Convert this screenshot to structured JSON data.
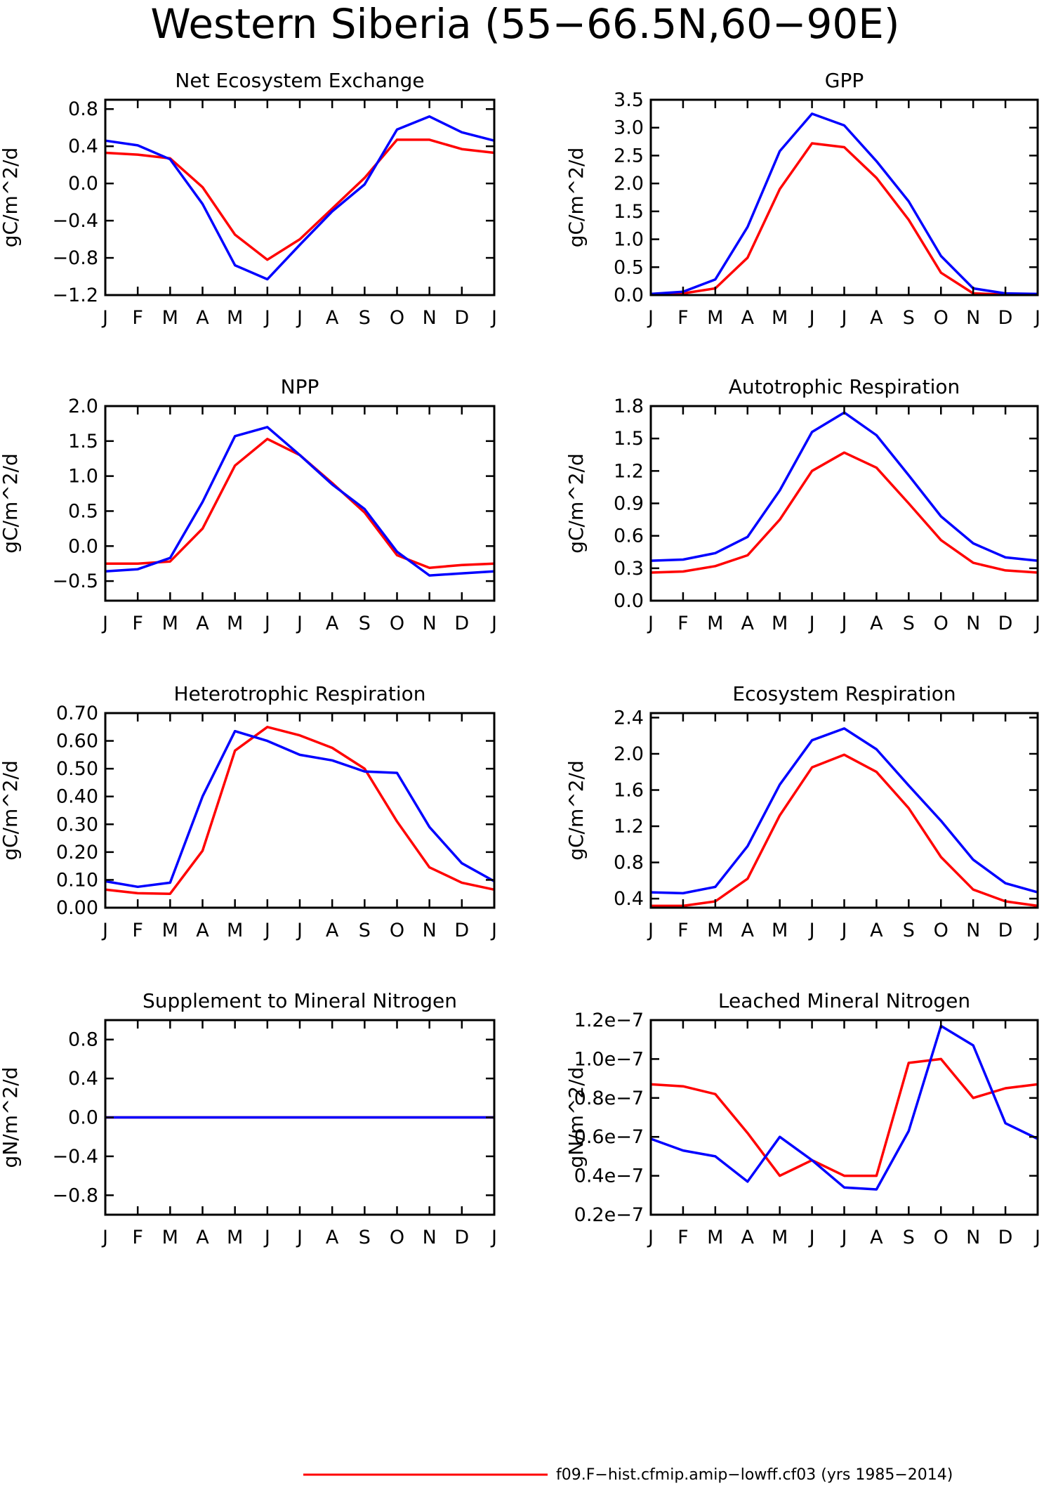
{
  "title": "Western Siberia (55−66.5N,60−90E)",
  "colors": {
    "run1": "#ff0000",
    "run2": "#0000ff"
  },
  "legend": {
    "entries": [
      {
        "label": "f09.F−hist.cfmip.amip−lowff.cf03 (yrs 1985−2014)",
        "color": "#ff0000"
      }
    ]
  },
  "chart_data": [
    {
      "type": "line",
      "title": "Net Ecosystem Exchange",
      "ylabel": "gC/m^2/d",
      "categories": [
        "J",
        "F",
        "M",
        "A",
        "M",
        "J",
        "J",
        "A",
        "S",
        "O",
        "N",
        "D",
        "J"
      ],
      "ylim": [
        -1.2,
        0.9
      ],
      "yticks": [
        -1.2,
        -0.8,
        -0.4,
        0.0,
        0.4,
        0.8
      ],
      "ytick_labels": [
        "−1.2",
        "−0.8",
        "−0.4",
        "0.0",
        "0.4",
        "0.8"
      ],
      "series": [
        {
          "color": "#ff0000",
          "values": [
            0.33,
            0.31,
            0.27,
            -0.04,
            -0.55,
            -0.82,
            -0.6,
            -0.27,
            0.06,
            0.47,
            0.47,
            0.37,
            0.33
          ]
        },
        {
          "color": "#0000ff",
          "values": [
            0.46,
            0.41,
            0.26,
            -0.22,
            -0.88,
            -1.03,
            -0.66,
            -0.3,
            -0.01,
            0.58,
            0.72,
            0.55,
            0.46
          ]
        }
      ]
    },
    {
      "type": "line",
      "title": "GPP",
      "ylabel": "gC/m^2/d",
      "categories": [
        "J",
        "F",
        "M",
        "A",
        "M",
        "J",
        "J",
        "A",
        "S",
        "O",
        "N",
        "D",
        "J"
      ],
      "ylim": [
        0.0,
        3.5
      ],
      "yticks": [
        0.0,
        0.5,
        1.0,
        1.5,
        2.0,
        2.5,
        3.0,
        3.5
      ],
      "ytick_labels": [
        "0.0",
        "0.5",
        "1.0",
        "1.5",
        "2.0",
        "2.5",
        "3.0",
        "3.5"
      ],
      "series": [
        {
          "color": "#ff0000",
          "values": [
            0.02,
            0.03,
            0.12,
            0.67,
            1.9,
            2.72,
            2.65,
            2.1,
            1.35,
            0.4,
            0.03,
            0.01,
            0.02
          ]
        },
        {
          "color": "#0000ff",
          "values": [
            0.02,
            0.06,
            0.28,
            1.22,
            2.58,
            3.25,
            3.04,
            2.4,
            1.68,
            0.7,
            0.12,
            0.03,
            0.02
          ]
        }
      ]
    },
    {
      "type": "line",
      "title": "NPP",
      "ylabel": "gC/m^2/d",
      "categories": [
        "J",
        "F",
        "M",
        "A",
        "M",
        "J",
        "J",
        "A",
        "S",
        "O",
        "N",
        "D",
        "J"
      ],
      "ylim": [
        -0.78,
        2.0
      ],
      "yticks": [
        -0.5,
        0.0,
        0.5,
        1.0,
        1.5,
        2.0
      ],
      "ytick_labels": [
        "−0.5",
        "0.0",
        "0.5",
        "1.0",
        "1.5",
        "2.0"
      ],
      "series": [
        {
          "color": "#ff0000",
          "values": [
            -0.25,
            -0.25,
            -0.22,
            0.25,
            1.15,
            1.53,
            1.3,
            0.9,
            0.48,
            -0.13,
            -0.31,
            -0.27,
            -0.25
          ]
        },
        {
          "color": "#0000ff",
          "values": [
            -0.36,
            -0.33,
            -0.17,
            0.63,
            1.57,
            1.7,
            1.3,
            0.88,
            0.53,
            -0.08,
            -0.42,
            -0.39,
            -0.36
          ]
        }
      ]
    },
    {
      "type": "line",
      "title": "Autotrophic Respiration",
      "ylabel": "gC/m^2/d",
      "categories": [
        "J",
        "F",
        "M",
        "A",
        "M",
        "J",
        "J",
        "A",
        "S",
        "O",
        "N",
        "D",
        "J"
      ],
      "ylim": [
        0.0,
        1.8
      ],
      "yticks": [
        0.0,
        0.3,
        0.6,
        0.9,
        1.2,
        1.5,
        1.8
      ],
      "ytick_labels": [
        "0.0",
        "0.3",
        "0.6",
        "0.9",
        "1.2",
        "1.5",
        "1.8"
      ],
      "series": [
        {
          "color": "#ff0000",
          "values": [
            0.26,
            0.27,
            0.32,
            0.42,
            0.75,
            1.2,
            1.37,
            1.23,
            0.9,
            0.56,
            0.35,
            0.28,
            0.26
          ]
        },
        {
          "color": "#0000ff",
          "values": [
            0.37,
            0.38,
            0.44,
            0.59,
            1.02,
            1.56,
            1.74,
            1.53,
            1.16,
            0.78,
            0.53,
            0.4,
            0.37
          ]
        }
      ]
    },
    {
      "type": "line",
      "title": "Heterotrophic Respiration",
      "ylabel": "gC/m^2/d",
      "categories": [
        "J",
        "F",
        "M",
        "A",
        "M",
        "J",
        "J",
        "A",
        "S",
        "O",
        "N",
        "D",
        "J"
      ],
      "ylim": [
        0.0,
        0.7
      ],
      "yticks": [
        0.0,
        0.1,
        0.2,
        0.3,
        0.4,
        0.5,
        0.6,
        0.7
      ],
      "ytick_labels": [
        "0.00",
        "0.10",
        "0.20",
        "0.30",
        "0.40",
        "0.50",
        "0.60",
        "0.70"
      ],
      "series": [
        {
          "color": "#ff0000",
          "values": [
            0.065,
            0.052,
            0.05,
            0.205,
            0.565,
            0.65,
            0.62,
            0.575,
            0.5,
            0.31,
            0.145,
            0.09,
            0.065
          ]
        },
        {
          "color": "#0000ff",
          "values": [
            0.095,
            0.075,
            0.09,
            0.4,
            0.635,
            0.6,
            0.55,
            0.53,
            0.49,
            0.485,
            0.29,
            0.16,
            0.095
          ]
        }
      ]
    },
    {
      "type": "line",
      "title": "Ecosystem Respiration",
      "ylabel": "gC/m^2/d",
      "categories": [
        "J",
        "F",
        "M",
        "A",
        "M",
        "J",
        "J",
        "A",
        "S",
        "O",
        "N",
        "D",
        "J"
      ],
      "ylim": [
        0.3,
        2.45
      ],
      "yticks": [
        0.4,
        0.8,
        1.2,
        1.6,
        2.0,
        2.4
      ],
      "ytick_labels": [
        "0.4",
        "0.8",
        "1.2",
        "1.6",
        "2.0",
        "2.4"
      ],
      "series": [
        {
          "color": "#ff0000",
          "values": [
            0.32,
            0.32,
            0.37,
            0.62,
            1.32,
            1.85,
            1.99,
            1.8,
            1.4,
            0.86,
            0.5,
            0.37,
            0.32
          ]
        },
        {
          "color": "#0000ff",
          "values": [
            0.47,
            0.46,
            0.53,
            0.98,
            1.66,
            2.15,
            2.28,
            2.05,
            1.65,
            1.26,
            0.83,
            0.57,
            0.47
          ]
        }
      ]
    },
    {
      "type": "line",
      "title": "Supplement to Mineral Nitrogen",
      "ylabel": "gN/m^2/d",
      "categories": [
        "J",
        "F",
        "M",
        "A",
        "M",
        "J",
        "J",
        "A",
        "S",
        "O",
        "N",
        "D",
        "J"
      ],
      "ylim": [
        -1.0,
        1.0
      ],
      "yticks": [
        -0.8,
        -0.4,
        0.0,
        0.4,
        0.8
      ],
      "ytick_labels": [
        "−0.8",
        "−0.4",
        "0.0",
        "0.4",
        "0.8"
      ],
      "series": [
        {
          "color": "#ff0000",
          "values": [
            0,
            0,
            0,
            0,
            0,
            0,
            0,
            0,
            0,
            0,
            0,
            0,
            0
          ]
        },
        {
          "color": "#0000ff",
          "values": [
            0,
            0,
            0,
            0,
            0,
            0,
            0,
            0,
            0,
            0,
            0,
            0,
            0
          ]
        }
      ]
    },
    {
      "type": "line",
      "title": "Leached Mineral Nitrogen",
      "ylabel": "gN/m^2/d",
      "categories": [
        "J",
        "F",
        "M",
        "A",
        "M",
        "J",
        "J",
        "A",
        "S",
        "O",
        "N",
        "D",
        "J"
      ],
      "ylim": [
        2e-08,
        1.2e-07
      ],
      "yticks": [
        2e-08,
        4e-08,
        6e-08,
        8e-08,
        1e-07,
        1.2e-07
      ],
      "ytick_labels": [
        "0.2e−7",
        "0.4e−7",
        "0.6e−7",
        "0.8e−7",
        "1.0e−7",
        "1.2e−7"
      ],
      "series": [
        {
          "color": "#ff0000",
          "values": [
            8.7e-08,
            8.6e-08,
            8.2e-08,
            6.2e-08,
            4e-08,
            4.8e-08,
            4e-08,
            4e-08,
            9.8e-08,
            1e-07,
            8e-08,
            8.5e-08,
            8.7e-08
          ]
        },
        {
          "color": "#0000ff",
          "values": [
            5.9e-08,
            5.3e-08,
            5e-08,
            3.7e-08,
            6e-08,
            4.8e-08,
            3.4e-08,
            3.3e-08,
            6.3e-08,
            1.17e-07,
            1.07e-07,
            6.7e-08,
            5.9e-08
          ]
        }
      ]
    }
  ]
}
